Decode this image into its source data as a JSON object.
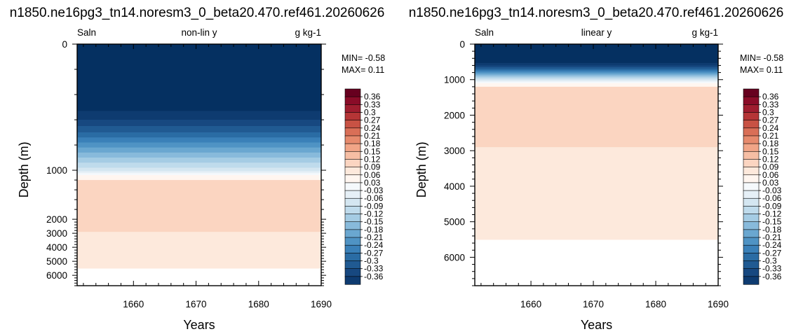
{
  "colors": {
    "levels": [
      "#053061",
      "#0e3b70",
      "#174880",
      "#205a92",
      "#2a6ca4",
      "#3a80b8",
      "#4f93c4",
      "#6aa7d0",
      "#88badb",
      "#a5cce4",
      "#bfdbec",
      "#d4e6f1",
      "#e6f0f7",
      "#f5f9fc",
      "#fff6f0",
      "#fde9dc",
      "#fbd5c1",
      "#f6bea4",
      "#f1a587",
      "#e68a6d",
      "#d96f57",
      "#c85244",
      "#b53536",
      "#9f1d2f",
      "#8a0c28",
      "#67001f"
    ]
  },
  "chart_data": [
    {
      "type": "heatmap",
      "title": "n1850.ne16pg3_tn14.noresm3_0_beta20.470.ref461.20260626",
      "left_label": "Saln",
      "center_label": "non-lin y",
      "right_label": "g kg-1",
      "xlabel": "Years",
      "ylabel": "Depth (m)",
      "xlim": [
        1651,
        1690
      ],
      "xticks": [
        "1660",
        "1670",
        "1680",
        "1690"
      ],
      "yscale": "non-linear",
      "ylim": [
        0,
        6800
      ],
      "yticks": [
        "0",
        "1000",
        "2000",
        "3000",
        "4000",
        "5000",
        "6000"
      ],
      "min_label": "MIN= -0.58",
      "max_label": "MAX=  0.11",
      "colorbar_labels": [
        "0.36",
        "0.33",
        "0.3",
        "0.27",
        "0.24",
        "0.21",
        "0.18",
        "0.15",
        "0.12",
        "0.09",
        "0.06",
        "0.03",
        "-0.03",
        "-0.06",
        "-0.09",
        "-0.12",
        "-0.15",
        "-0.18",
        "-0.21",
        "-0.24",
        "-0.27",
        "-0.3",
        "-0.33",
        "-0.36"
      ]
    },
    {
      "type": "heatmap",
      "title": "n1850.ne16pg3_tn14.noresm3_0_beta20.470.ref461.20260626",
      "left_label": "Saln",
      "center_label": "linear y",
      "right_label": "g kg-1",
      "xlabel": "Years",
      "ylabel": "Depth (m)",
      "xlim": [
        1651,
        1690
      ],
      "xticks": [
        "1660",
        "1670",
        "1680",
        "1690"
      ],
      "yscale": "linear",
      "ylim": [
        0,
        6800
      ],
      "yticks": [
        "0",
        "1000",
        "2000",
        "3000",
        "4000",
        "5000",
        "6000"
      ],
      "min_label": "MIN= -0.58",
      "max_label": "MAX=  0.11",
      "colorbar_labels": [
        "0.36",
        "0.33",
        "0.3",
        "0.27",
        "0.24",
        "0.21",
        "0.18",
        "0.15",
        "0.12",
        "0.09",
        "0.06",
        "0.03",
        "-0.03",
        "-0.06",
        "-0.09",
        "-0.12",
        "-0.15",
        "-0.18",
        "-0.21",
        "-0.24",
        "-0.27",
        "-0.3",
        "-0.33",
        "-0.36"
      ]
    }
  ]
}
